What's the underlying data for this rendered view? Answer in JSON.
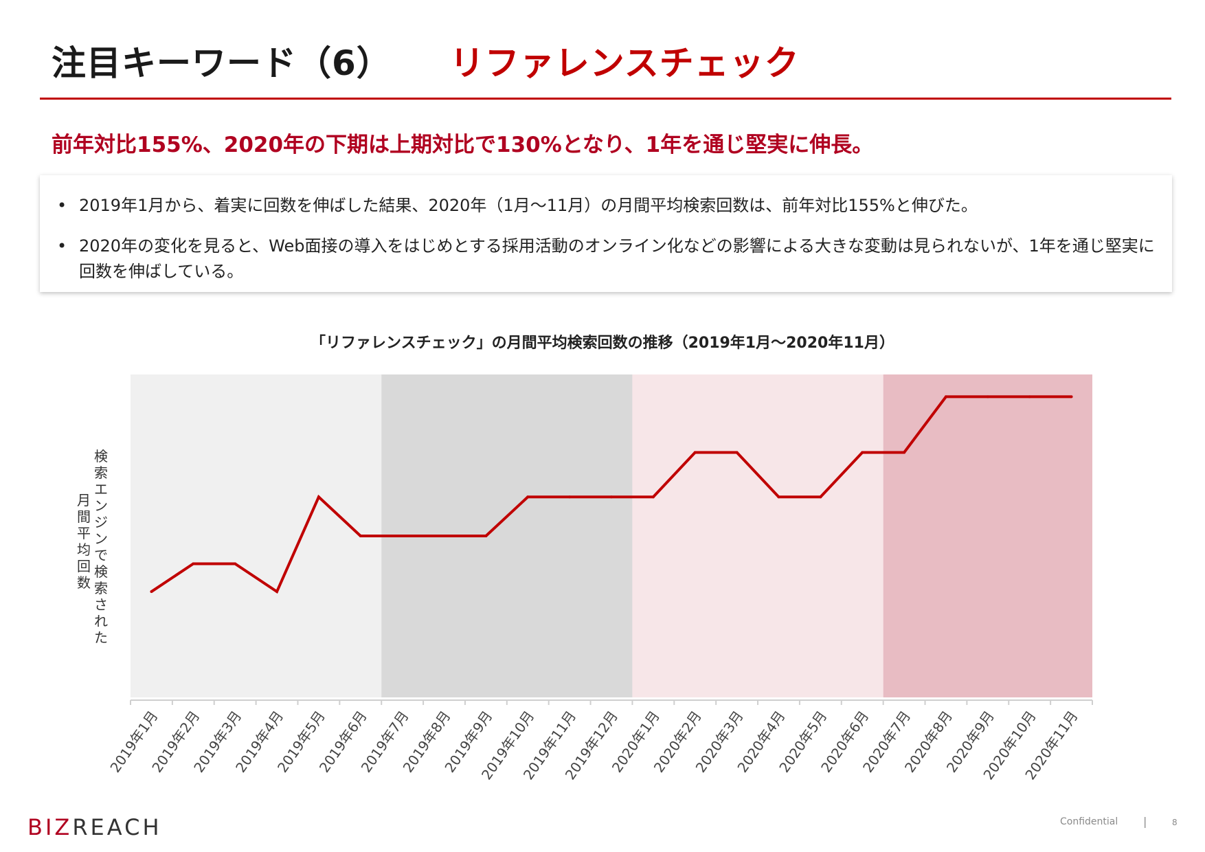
{
  "header": {
    "title_main": "注目キーワード（6）",
    "title_accent": "リファレンスチェック"
  },
  "headline": "前年対比155%、2020年の下期は上期対比で130%となり、1年を通じ堅実に伸長。",
  "bullets": [
    "2019年1月から、着実に回数を伸ばした結果、2020年（1月〜11月）の月間平均検索回数は、前年対比155%と伸びた。",
    "2020年の変化を見ると、Web面接の導入をはじめとする採用活動のオンライン化などの影響による大きな変動は見られないが、1年を通じ堅実に回数を伸ばしている。"
  ],
  "bullet_marker": "•",
  "chart_data": {
    "type": "line",
    "title": "「リファレンスチェック」の月間平均検索回数の推移（2019年1月〜2020年11月）",
    "ylabel_lines": [
      "検索エンジンで検索された",
      "月間平均回数"
    ],
    "categories": [
      "2019年1月",
      "2019年2月",
      "2019年3月",
      "2019年4月",
      "2019年5月",
      "2019年6月",
      "2019年7月",
      "2019年8月",
      "2019年9月",
      "2019年10月",
      "2019年11月",
      "2019年12月",
      "2020年1月",
      "2020年2月",
      "2020年3月",
      "2020年4月",
      "2020年5月",
      "2020年6月",
      "2020年7月",
      "2020年8月",
      "2020年9月",
      "2020年10月",
      "2020年11月"
    ],
    "values": [
      19,
      24,
      24,
      19,
      36,
      29,
      29,
      29,
      29,
      36,
      36,
      36,
      36,
      44,
      44,
      36,
      36,
      44,
      44,
      54,
      54,
      54,
      54
    ],
    "ylim": [
      0,
      58
    ],
    "y_ticks_shown": false,
    "grid": false,
    "line_color": "#c00000",
    "shaded_periods": [
      {
        "from": "2019年1月",
        "to": "2019年6月",
        "color": "#f0f0f0"
      },
      {
        "from": "2019年7月",
        "to": "2019年12月",
        "color": "#d9d9d9"
      },
      {
        "from": "2020年1月",
        "to": "2020年6月",
        "color": "#f7e6e8"
      },
      {
        "from": "2020年7月",
        "to": "2020年11月",
        "color": "#e8bcc3"
      }
    ]
  },
  "footer": {
    "logo_biz": "BIZ",
    "logo_reach": "REACH",
    "confidential": "Confidential",
    "separator": "|",
    "page_number": "8"
  },
  "colors": {
    "accent": "#c00000",
    "headline": "#b00020"
  }
}
